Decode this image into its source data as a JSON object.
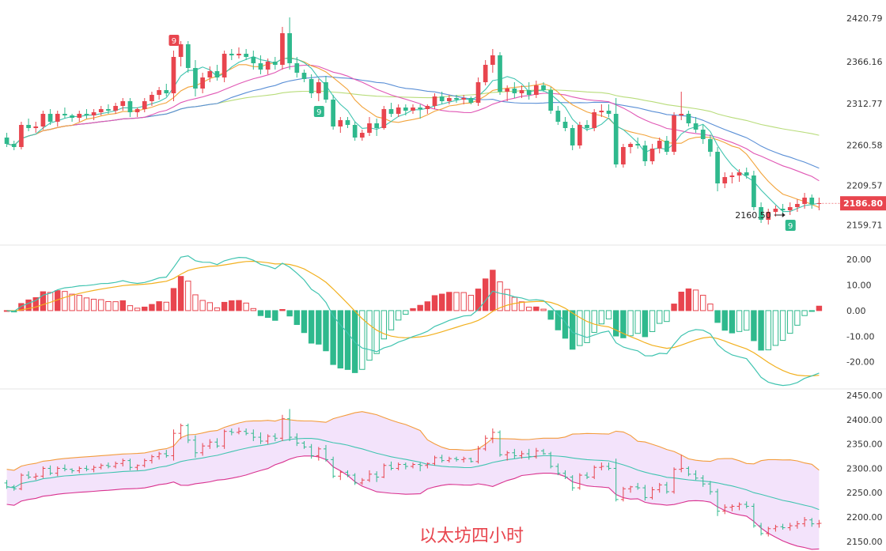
{
  "title": "以太坊四小时",
  "colors": {
    "up": "#e8454e",
    "down": "#2fb98d",
    "ma5": "#40c4b0",
    "ma10": "#f2a33a",
    "ma20": "#e056b4",
    "ma30": "#5a8fd6",
    "ma60": "#b8dc7a",
    "dif": "#40c4b0",
    "dea": "#f2b01e",
    "boll_upper": "#f39c3c",
    "boll_mid": "#40c4b0",
    "boll_lower": "#d9328f",
    "boll_fill": "#f3e3fb"
  },
  "chart_data": [
    {
      "type": "candlestick",
      "panel": "price",
      "yticks": [
        "2420.79",
        "2366.16",
        "2312.77",
        "2260.58",
        "2209.57",
        "2159.71"
      ],
      "ylim": [
        2140,
        2430
      ],
      "last_price": "2186.80",
      "low_annotation": "2160.50",
      "td_labels": [
        "9",
        "9",
        "9"
      ],
      "candles": [
        [
          2270,
          2276,
          2258,
          2262
        ],
        [
          2262,
          2266,
          2254,
          2258
        ],
        [
          2258,
          2290,
          2255,
          2286
        ],
        [
          2286,
          2294,
          2278,
          2282
        ],
        [
          2282,
          2290,
          2276,
          2284
        ],
        [
          2284,
          2304,
          2280,
          2300
        ],
        [
          2300,
          2306,
          2286,
          2290
        ],
        [
          2290,
          2304,
          2284,
          2300
        ],
        [
          2300,
          2308,
          2294,
          2298
        ],
        [
          2298,
          2300,
          2290,
          2295
        ],
        [
          2295,
          2304,
          2290,
          2300
        ],
        [
          2300,
          2306,
          2294,
          2298
        ],
        [
          2298,
          2306,
          2292,
          2302
        ],
        [
          2302,
          2310,
          2298,
          2306
        ],
        [
          2306,
          2312,
          2300,
          2304
        ],
        [
          2304,
          2314,
          2300,
          2310
        ],
        [
          2310,
          2320,
          2304,
          2316
        ],
        [
          2316,
          2320,
          2296,
          2302
        ],
        [
          2302,
          2308,
          2296,
          2306
        ],
        [
          2306,
          2320,
          2302,
          2316
        ],
        [
          2316,
          2328,
          2310,
          2324
        ],
        [
          2324,
          2334,
          2318,
          2330
        ],
        [
          2330,
          2338,
          2322,
          2326
        ],
        [
          2326,
          2380,
          2316,
          2372
        ],
        [
          2372,
          2392,
          2360,
          2388
        ],
        [
          2388,
          2392,
          2352,
          2358
        ],
        [
          2358,
          2368,
          2322,
          2332
        ],
        [
          2332,
          2352,
          2326,
          2346
        ],
        [
          2346,
          2360,
          2340,
          2354
        ],
        [
          2354,
          2362,
          2342,
          2346
        ],
        [
          2346,
          2380,
          2340,
          2376
        ],
        [
          2376,
          2382,
          2368,
          2374
        ],
        [
          2374,
          2384,
          2370,
          2376
        ],
        [
          2376,
          2382,
          2368,
          2372
        ],
        [
          2372,
          2380,
          2356,
          2364
        ],
        [
          2364,
          2374,
          2350,
          2356
        ],
        [
          2356,
          2370,
          2350,
          2366
        ],
        [
          2366,
          2372,
          2356,
          2362
        ],
        [
          2362,
          2410,
          2356,
          2402
        ],
        [
          2402,
          2422,
          2356,
          2364
        ],
        [
          2364,
          2372,
          2346,
          2352
        ],
        [
          2352,
          2356,
          2340,
          2344
        ],
        [
          2344,
          2350,
          2320,
          2326
        ],
        [
          2326,
          2344,
          2316,
          2340
        ],
        [
          2340,
          2348,
          2314,
          2318
        ],
        [
          2318,
          2324,
          2280,
          2284
        ],
        [
          2284,
          2296,
          2276,
          2292
        ],
        [
          2292,
          2296,
          2282,
          2286
        ],
        [
          2286,
          2290,
          2266,
          2270
        ],
        [
          2270,
          2280,
          2266,
          2276
        ],
        [
          2276,
          2296,
          2272,
          2288
        ],
        [
          2288,
          2294,
          2272,
          2282
        ],
        [
          2282,
          2310,
          2280,
          2306
        ],
        [
          2306,
          2314,
          2296,
          2300
        ],
        [
          2300,
          2312,
          2296,
          2308
        ],
        [
          2308,
          2312,
          2298,
          2304
        ],
        [
          2304,
          2312,
          2300,
          2308
        ],
        [
          2308,
          2312,
          2294,
          2306
        ],
        [
          2306,
          2312,
          2300,
          2310
        ],
        [
          2310,
          2326,
          2306,
          2322
        ],
        [
          2322,
          2328,
          2312,
          2316
        ],
        [
          2316,
          2324,
          2312,
          2320
        ],
        [
          2320,
          2324,
          2314,
          2318
        ],
        [
          2318,
          2324,
          2312,
          2320
        ],
        [
          2320,
          2322,
          2312,
          2314
        ],
        [
          2314,
          2346,
          2310,
          2340
        ],
        [
          2340,
          2368,
          2336,
          2362
        ],
        [
          2362,
          2382,
          2352,
          2374
        ],
        [
          2374,
          2378,
          2324,
          2328
        ],
        [
          2328,
          2336,
          2316,
          2332
        ],
        [
          2332,
          2340,
          2320,
          2326
        ],
        [
          2326,
          2336,
          2320,
          2330
        ],
        [
          2330,
          2340,
          2318,
          2324
        ],
        [
          2324,
          2342,
          2320,
          2336
        ],
        [
          2336,
          2340,
          2328,
          2330
        ],
        [
          2330,
          2334,
          2300,
          2304
        ],
        [
          2304,
          2310,
          2286,
          2290
        ],
        [
          2290,
          2296,
          2278,
          2282
        ],
        [
          2282,
          2286,
          2254,
          2260
        ],
        [
          2260,
          2290,
          2256,
          2286
        ],
        [
          2286,
          2292,
          2278,
          2282
        ],
        [
          2282,
          2306,
          2278,
          2302
        ],
        [
          2302,
          2312,
          2296,
          2304
        ],
        [
          2304,
          2312,
          2296,
          2300
        ],
        [
          2300,
          2320,
          2232,
          2236
        ],
        [
          2236,
          2262,
          2232,
          2258
        ],
        [
          2258,
          2264,
          2250,
          2262
        ],
        [
          2262,
          2270,
          2256,
          2260
        ],
        [
          2260,
          2266,
          2234,
          2240
        ],
        [
          2240,
          2262,
          2236,
          2256
        ],
        [
          2256,
          2270,
          2250,
          2266
        ],
        [
          2266,
          2272,
          2248,
          2252
        ],
        [
          2252,
          2302,
          2248,
          2298
        ],
        [
          2298,
          2328,
          2292,
          2300
        ],
        [
          2300,
          2304,
          2284,
          2288
        ],
        [
          2288,
          2296,
          2276,
          2280
        ],
        [
          2280,
          2286,
          2262,
          2268
        ],
        [
          2268,
          2274,
          2246,
          2252
        ],
        [
          2252,
          2258,
          2202,
          2212
        ],
        [
          2212,
          2226,
          2206,
          2220
        ],
        [
          2220,
          2226,
          2212,
          2222
        ],
        [
          2222,
          2230,
          2214,
          2226
        ],
        [
          2226,
          2232,
          2218,
          2222
        ],
        [
          2222,
          2228,
          2178,
          2182
        ],
        [
          2182,
          2188,
          2162,
          2166
        ],
        [
          2166,
          2180,
          2160,
          2176
        ],
        [
          2176,
          2184,
          2170,
          2180
        ],
        [
          2180,
          2186,
          2174,
          2178
        ],
        [
          2178,
          2188,
          2172,
          2182
        ],
        [
          2182,
          2192,
          2176,
          2186
        ],
        [
          2186,
          2200,
          2180,
          2194
        ],
        [
          2194,
          2198,
          2180,
          2186
        ],
        [
          2186,
          2194,
          2178,
          2187
        ]
      ]
    },
    {
      "type": "macd",
      "panel": "macd",
      "yticks": [
        "20.00",
        "10.00",
        "0.00",
        "-10.00",
        "-20.00"
      ],
      "ylim": [
        -30,
        25
      ]
    },
    {
      "type": "bollinger",
      "panel": "boll",
      "yticks": [
        "2450.00",
        "2400.00",
        "2350.00",
        "2300.00",
        "2250.00",
        "2200.00",
        "2150.00"
      ],
      "ylim": [
        2135,
        2460
      ]
    }
  ]
}
